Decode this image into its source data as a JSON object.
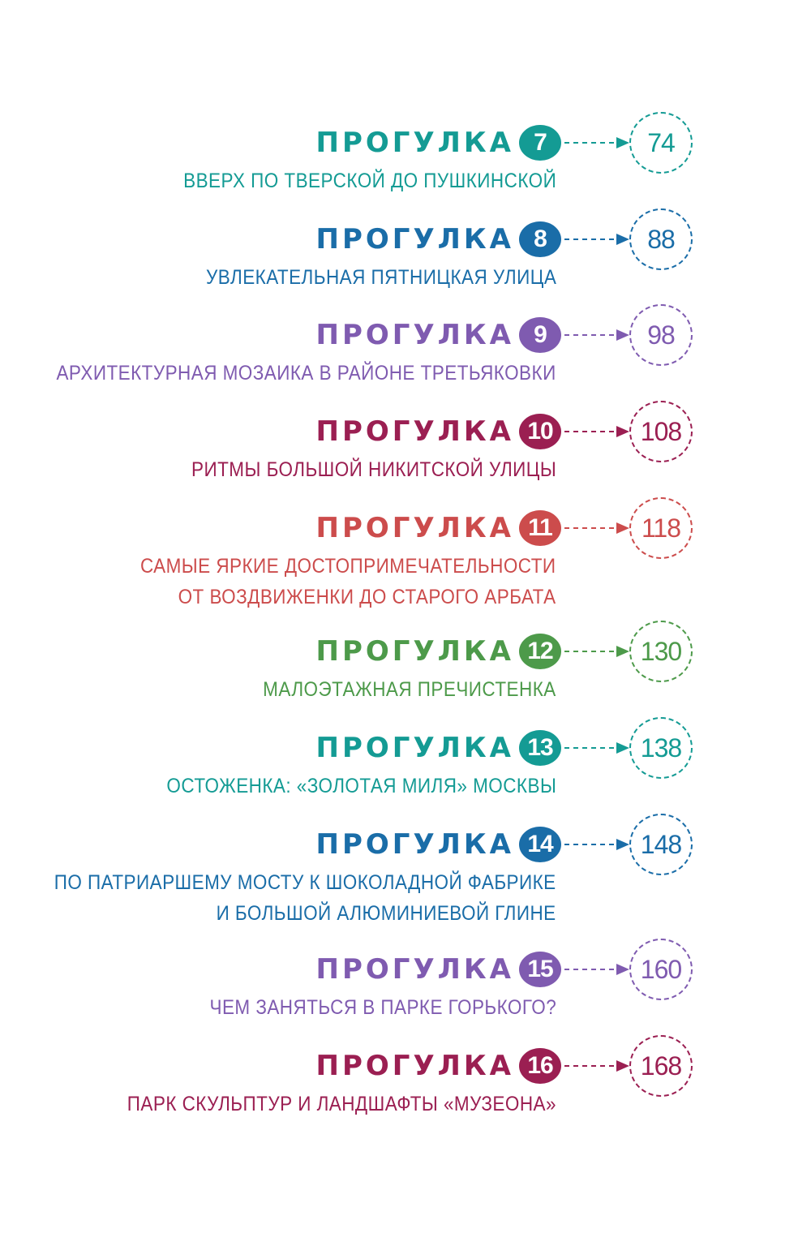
{
  "entries": [
    {
      "label": "ПРОГУЛКА",
      "number": "7",
      "page": "74",
      "color": "#149b94",
      "desc": [
        "ВВЕРХ ПО ТВЕРСКОЙ ДО ПУШКИНСКОЙ"
      ]
    },
    {
      "label": "ПРОГУЛКА",
      "number": "8",
      "page": "88",
      "color": "#1a6da8",
      "desc": [
        "УВЛЕКАТЕЛЬНАЯ ПЯТНИЦКАЯ УЛИЦА"
      ]
    },
    {
      "label": "ПРОГУЛКА",
      "number": "9",
      "page": "98",
      "color": "#7f5bb0",
      "desc": [
        "АРХИТЕКТУРНАЯ МОЗАИКА В РАЙОНЕ ТРЕТЬЯКОВКИ"
      ]
    },
    {
      "label": "ПРОГУЛКА",
      "number": "10",
      "page": "108",
      "color": "#9b1f52",
      "desc": [
        "РИТМЫ БОЛЬШОЙ НИКИТСКОЙ УЛИЦЫ"
      ]
    },
    {
      "label": "ПРОГУЛКА",
      "number": "11",
      "page": "118",
      "color": "#cc4c4c",
      "desc": [
        "САМЫЕ ЯРКИЕ ДОСТОПРИМЕЧАТЕЛЬНОСТИ",
        "ОТ ВОЗДВИЖЕНКИ ДО СТАРОГО АРБАТА"
      ]
    },
    {
      "label": "ПРОГУЛКА",
      "number": "12",
      "page": "130",
      "color": "#4d9a4a",
      "desc": [
        "МАЛОЭТАЖНАЯ ПРЕЧИСТЕНКА"
      ]
    },
    {
      "label": "ПРОГУЛКА",
      "number": "13",
      "page": "138",
      "color": "#149b94",
      "desc": [
        "ОСТОЖЕНКА: «ЗОЛОТАЯ МИЛЯ» МОСКВЫ"
      ]
    },
    {
      "label": "ПРОГУЛКА",
      "number": "14",
      "page": "148",
      "color": "#1a6da8",
      "desc": [
        "ПО ПАТРИАРШЕМУ МОСТУ К ШОКОЛАДНОЙ ФАБРИКЕ",
        "И БОЛЬШОЙ АЛЮМИНИЕВОЙ ГЛИНЕ"
      ]
    },
    {
      "label": "ПРОГУЛКА",
      "number": "15",
      "page": "160",
      "color": "#7f5bb0",
      "desc": [
        "ЧЕМ ЗАНЯТЬСЯ В ПАРКЕ ГОРЬКОГО?"
      ]
    },
    {
      "label": "ПРОГУЛКА",
      "number": "16",
      "page": "168",
      "color": "#9b1f52",
      "desc": [
        "ПАРК СКУЛЬПТУР И ЛАНДШАФТЫ «МУЗЕОНА»"
      ]
    }
  ]
}
